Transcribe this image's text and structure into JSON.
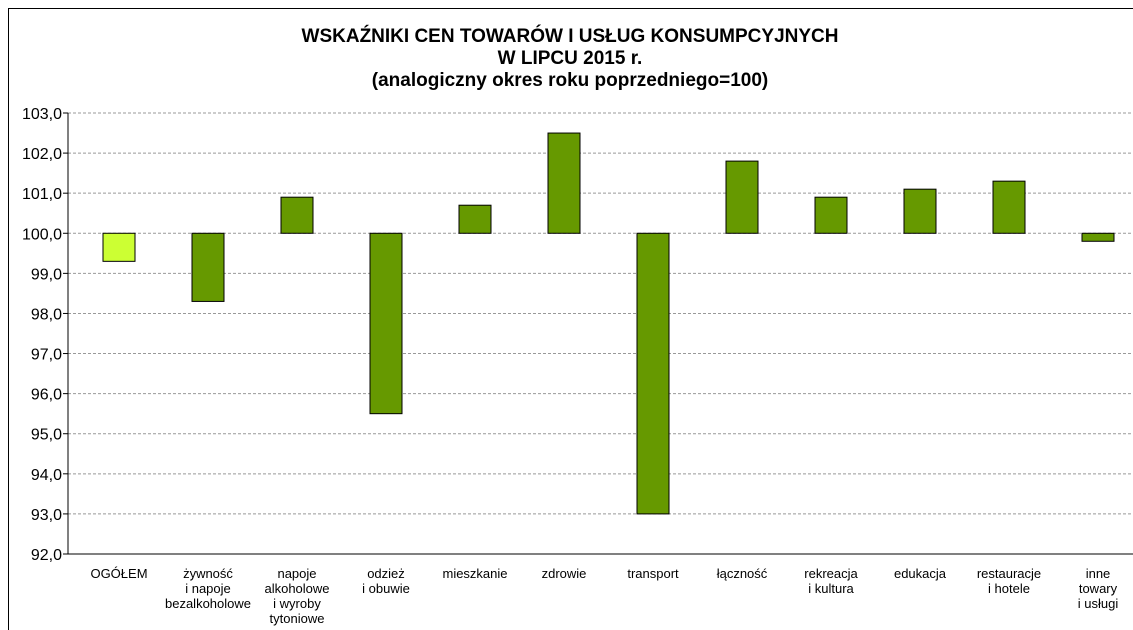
{
  "chart_data": {
    "type": "bar",
    "title": "WSKAŹNIKI CEN TOWARÓW I USŁUG KONSUMPCYJNYCH\nW LIPCU 2015 r.\n(analogiczny okres roku poprzedniego=100)",
    "categories": [
      "OGÓŁEM",
      "żywność\ni napoje\nbezalkoholowe",
      "napoje\nalkoholowe\ni wyroby\ntytoniowe",
      "odzież\ni obuwie",
      "mieszkanie",
      "zdrowie",
      "transport",
      "łączność",
      "rekreacja\ni kultura",
      "edukacja",
      "restauracje\ni hotele",
      "inne\ntowary\ni usługi"
    ],
    "values": [
      99.3,
      98.3,
      100.9,
      95.5,
      100.7,
      102.5,
      93.0,
      101.8,
      100.9,
      101.1,
      101.3,
      99.8
    ],
    "colors": [
      "#ccff33",
      "#669900",
      "#669900",
      "#669900",
      "#669900",
      "#669900",
      "#669900",
      "#669900",
      "#669900",
      "#669900",
      "#669900",
      "#669900"
    ],
    "base": 100,
    "ylim": [
      92,
      103
    ],
    "yticks": [
      {
        "value": 92,
        "label": "92,0"
      },
      {
        "value": 93,
        "label": "93,0"
      },
      {
        "value": 94,
        "label": "94,0"
      },
      {
        "value": 95,
        "label": "95,0"
      },
      {
        "value": 96,
        "label": "96,0"
      },
      {
        "value": 97,
        "label": "97,0"
      },
      {
        "value": 98,
        "label": "98,0"
      },
      {
        "value": 99,
        "label": "99,0"
      },
      {
        "value": 100,
        "label": "100,0"
      },
      {
        "value": 101,
        "label": "101,0"
      },
      {
        "value": 102,
        "label": "102,0"
      },
      {
        "value": 103,
        "label": "103,0"
      }
    ],
    "grid": true
  }
}
